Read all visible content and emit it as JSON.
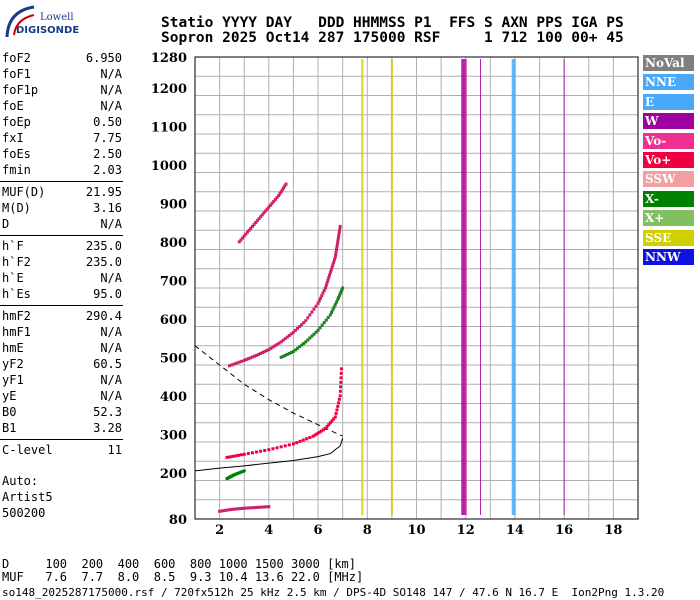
{
  "logo": {
    "top": "Lowell",
    "bottom": "DIGISONDE"
  },
  "header": {
    "line1": "Statio YYYY DAY   DDD HHMMSS P1  FFS S AXN PPS IGA PS",
    "line2": "Sopron 2025 Oct14 287 175000 RSF     1 712 100 00+ 45"
  },
  "params": [
    {
      "name": "foF2",
      "value": "6.950"
    },
    {
      "name": "foF1",
      "value": "N/A"
    },
    {
      "name": "foF1p",
      "value": "N/A"
    },
    {
      "name": "foE",
      "value": "N/A"
    },
    {
      "name": "foEp",
      "value": "0.50"
    },
    {
      "name": "fxI",
      "value": "7.75"
    },
    {
      "name": "foEs",
      "value": "2.50"
    },
    {
      "name": "fmin",
      "value": "2.03"
    },
    {
      "name": "MUF(D)",
      "value": "21.95"
    },
    {
      "name": "M(D)",
      "value": "3.16"
    },
    {
      "name": "D",
      "value": "N/A"
    },
    {
      "name": "h`F",
      "value": "235.0"
    },
    {
      "name": "h`F2",
      "value": "235.0"
    },
    {
      "name": "h`E",
      "value": "N/A"
    },
    {
      "name": "h`Es",
      "value": "95.0"
    },
    {
      "name": "hmF2",
      "value": "290.4"
    },
    {
      "name": "hmF1",
      "value": "N/A"
    },
    {
      "name": "hmE",
      "value": "N/A"
    },
    {
      "name": "yF2",
      "value": "60.5"
    },
    {
      "name": "yF1",
      "value": "N/A"
    },
    {
      "name": "yE",
      "value": "N/A"
    },
    {
      "name": "B0",
      "value": "52.3"
    },
    {
      "name": "B1",
      "value": "3.28"
    },
    {
      "name": "C-level",
      "value": "11"
    }
  ],
  "auto": {
    "line1": "Auto:",
    "line2": "Artist5",
    "line3": "500200"
  },
  "legend": [
    {
      "label": "NoVal",
      "color": "#808080"
    },
    {
      "label": "NNE",
      "color": "#4aa8f8"
    },
    {
      "label": "E",
      "color": "#4aa8f8"
    },
    {
      "label": "W",
      "color": "#a000a0"
    },
    {
      "label": "Vo-",
      "color": "#f03090"
    },
    {
      "label": "Vo+",
      "color": "#f00040"
    },
    {
      "label": "SSW",
      "color": "#f0a0a0"
    },
    {
      "label": "X-",
      "color": "#008000"
    },
    {
      "label": "X+",
      "color": "#80c060"
    },
    {
      "label": "SSE",
      "color": "#d0d000"
    },
    {
      "label": "NNW",
      "color": "#1010e0"
    }
  ],
  "bottom": {
    "d_row": "D     100  200  400  600  800 1000 1500 3000 [km]",
    "muf_row": "MUF   7.6  7.7  8.0  8.5  9.3 10.4 13.6 22.0 [MHz]",
    "footer": "so148_2025287175000.rsf / 720fx512h 25 kHz 2.5 km / DPS-4D SO148 147 / 47.6 N 16.7 E  Ion2Png 1.3.20"
  },
  "chart_data": {
    "type": "scatter",
    "xlim": [
      1,
      19
    ],
    "ylim": [
      80,
      1280
    ],
    "x_ticks": [
      2,
      4,
      6,
      8,
      10,
      12,
      14,
      16,
      18
    ],
    "y_ticks": [
      80,
      200,
      300,
      400,
      500,
      600,
      700,
      800,
      900,
      1000,
      1100,
      1200,
      1280
    ],
    "grid": true,
    "series": [
      {
        "name": "Vo-",
        "color": "#d0206a",
        "points": [
          [
            2.4,
            478
          ],
          [
            3,
            492
          ],
          [
            3.5,
            505
          ],
          [
            4,
            520
          ],
          [
            4.5,
            540
          ],
          [
            5,
            565
          ],
          [
            5.5,
            595
          ],
          [
            6,
            640
          ],
          [
            6.3,
            680
          ],
          [
            6.5,
            720
          ],
          [
            6.7,
            760
          ],
          [
            6.8,
            800
          ],
          [
            6.9,
            840
          ]
        ]
      },
      {
        "name": "X-",
        "color": "#208020",
        "points": [
          [
            4.5,
            500
          ],
          [
            5,
            515
          ],
          [
            5.5,
            540
          ],
          [
            6,
            570
          ],
          [
            6.5,
            610
          ],
          [
            6.8,
            650
          ],
          [
            7,
            680
          ]
        ]
      },
      {
        "name": "Vo-",
        "color": "#d0206a",
        "points": [
          [
            2.8,
            800
          ],
          [
            3.2,
            830
          ],
          [
            3.6,
            860
          ],
          [
            4,
            890
          ],
          [
            4.4,
            920
          ],
          [
            4.7,
            950
          ]
        ]
      },
      {
        "name": "Vo+",
        "color": "#f00040",
        "points": [
          [
            2.3,
            240
          ],
          [
            3,
            248
          ],
          [
            4,
            260
          ],
          [
            5,
            275
          ],
          [
            5.8,
            295
          ],
          [
            6.3,
            315
          ],
          [
            6.7,
            345
          ],
          [
            6.9,
            400
          ],
          [
            6.95,
            470
          ]
        ]
      },
      {
        "name": "X-",
        "color": "#008000",
        "points": [
          [
            2.3,
            185
          ],
          [
            2.6,
            195
          ],
          [
            3,
            205
          ]
        ]
      },
      {
        "name": "Vo-",
        "color": "#d0206a",
        "points": [
          [
            2,
            100
          ],
          [
            2.5,
            105
          ],
          [
            3,
            108
          ],
          [
            3.5,
            110
          ],
          [
            4,
            112
          ]
        ]
      }
    ],
    "profile_curve": [
      [
        7,
        290
      ],
      [
        6.9,
        270
      ],
      [
        6.5,
        250
      ],
      [
        6,
        242
      ],
      [
        5,
        232
      ],
      [
        4,
        225
      ],
      [
        3,
        218
      ],
      [
        2,
        212
      ],
      [
        1,
        205
      ]
    ],
    "profile_dashed": [
      [
        1,
        530
      ],
      [
        2,
        480
      ],
      [
        3,
        430
      ],
      [
        4,
        390
      ],
      [
        5,
        355
      ],
      [
        6,
        325
      ],
      [
        7,
        295
      ]
    ]
  }
}
